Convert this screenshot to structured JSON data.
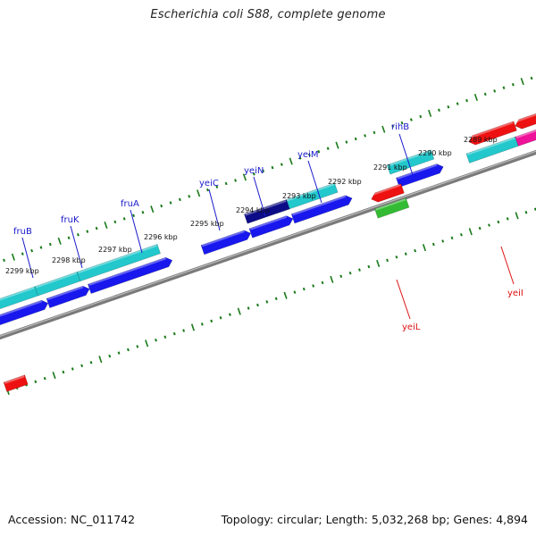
{
  "title": "Escherichia coli S88, complete genome",
  "footer": {
    "accession": "Accession: NC_011742",
    "summary": "Topology: circular; Length: 5,032,268 bp; Genes: 4,894"
  },
  "colors": {
    "backbone": "#7a7a7a",
    "tick": "#1a7a1a",
    "label_forward": "#1a1acc",
    "label_reverse": "#dd1111",
    "cyan": "#22c8cc",
    "blue": "#1818ee",
    "navy": "#0c0c88",
    "red": "#ee1111",
    "green": "#33bb33",
    "magenta": "#ee1199"
  },
  "kbp_labels": [
    "2289 kbp",
    "2290 kbp",
    "2291 kbp",
    "2292 kbp",
    "2293 kbp",
    "2294 kbp",
    "2295 kbp",
    "2296 kbp",
    "2297 kbp",
    "2298 kbp",
    "2299 kbp"
  ],
  "gene_labels": [
    {
      "name": "rihB",
      "strand": "forward"
    },
    {
      "name": "yeiM",
      "strand": "forward"
    },
    {
      "name": "yeiN",
      "strand": "forward"
    },
    {
      "name": "yeiC",
      "strand": "forward"
    },
    {
      "name": "fruA",
      "strand": "forward"
    },
    {
      "name": "fruK",
      "strand": "forward"
    },
    {
      "name": "fruB",
      "strand": "forward"
    },
    {
      "name": "yeiL",
      "strand": "reverse"
    },
    {
      "name": "yeiI",
      "strand": "reverse"
    }
  ]
}
